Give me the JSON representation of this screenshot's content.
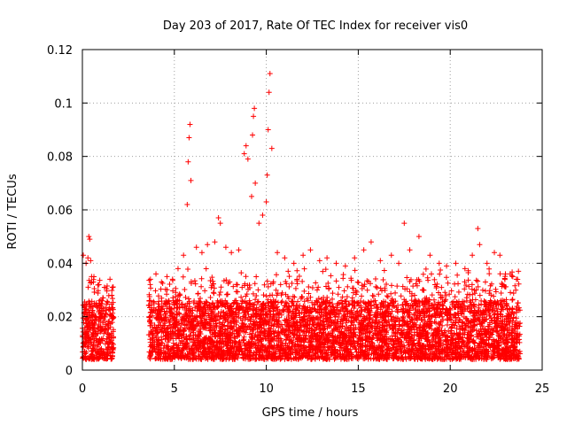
{
  "chart_data": {
    "type": "scatter",
    "title": "Day 203 of 2017, Rate Of TEC Index for receiver vis0",
    "xlabel": "GPS time / hours",
    "ylabel": "ROTI / TECUs",
    "xlim": [
      0,
      25
    ],
    "ylim": [
      0,
      0.12
    ],
    "x_ticks": [
      0,
      5,
      10,
      15,
      20,
      25
    ],
    "y_ticks": [
      0,
      0.02,
      0.04,
      0.06,
      0.08,
      0.1,
      0.12
    ],
    "x_tick_labels": [
      "0",
      "5",
      "10",
      "15",
      "20",
      "25"
    ],
    "y_tick_labels": [
      "0",
      "0.02",
      "0.04",
      "0.06",
      "0.08",
      "0.1",
      "0.12"
    ],
    "grid": true,
    "marker": "+",
    "color": "#ff0000",
    "series": [
      {
        "name": "vis0",
        "note": "dense band of ROTI samples, mostly 0.003-0.03 TECU/s; data gap ~1.7-3.6 h",
        "x": [
          0.05,
          0.2,
          0.3,
          0.35,
          0.4,
          0.45,
          0.5,
          0.6,
          0.9,
          1.2,
          1.5,
          1.6,
          3.7,
          4.0,
          4.3,
          4.6,
          4.9,
          5.2,
          5.5,
          5.7,
          5.75,
          5.8,
          5.85,
          5.9,
          6.2,
          6.5,
          6.8,
          7.2,
          7.4,
          7.5,
          7.8,
          8.1,
          8.5,
          8.8,
          8.9,
          9.0,
          9.2,
          9.25,
          9.3,
          9.35,
          9.4,
          9.6,
          9.8,
          10.0,
          10.05,
          10.1,
          10.15,
          10.2,
          10.3,
          10.6,
          11.0,
          11.5,
          12.0,
          12.4,
          12.9,
          13.3,
          13.8,
          14.3,
          14.8,
          15.3,
          15.7,
          16.2,
          16.8,
          17.2,
          17.5,
          17.8,
          18.3,
          18.9,
          19.4,
          19.8,
          20.3,
          20.8,
          21.2,
          21.5,
          21.6,
          22.0,
          22.4,
          22.7,
          23.0,
          23.4,
          23.6
        ],
        "y": [
          0.043,
          0.04,
          0.042,
          0.05,
          0.049,
          0.041,
          0.035,
          0.033,
          0.032,
          0.031,
          0.034,
          0.028,
          0.034,
          0.036,
          0.033,
          0.035,
          0.034,
          0.038,
          0.043,
          0.062,
          0.078,
          0.087,
          0.092,
          0.071,
          0.046,
          0.044,
          0.047,
          0.048,
          0.057,
          0.055,
          0.046,
          0.044,
          0.045,
          0.081,
          0.084,
          0.079,
          0.065,
          0.088,
          0.095,
          0.098,
          0.07,
          0.055,
          0.058,
          0.063,
          0.073,
          0.09,
          0.104,
          0.111,
          0.083,
          0.044,
          0.042,
          0.04,
          0.043,
          0.045,
          0.041,
          0.042,
          0.04,
          0.039,
          0.042,
          0.045,
          0.048,
          0.041,
          0.043,
          0.04,
          0.055,
          0.045,
          0.05,
          0.043,
          0.04,
          0.039,
          0.04,
          0.038,
          0.043,
          0.053,
          0.047,
          0.04,
          0.044,
          0.043,
          0.036,
          0.035,
          0.034
        ]
      }
    ]
  }
}
